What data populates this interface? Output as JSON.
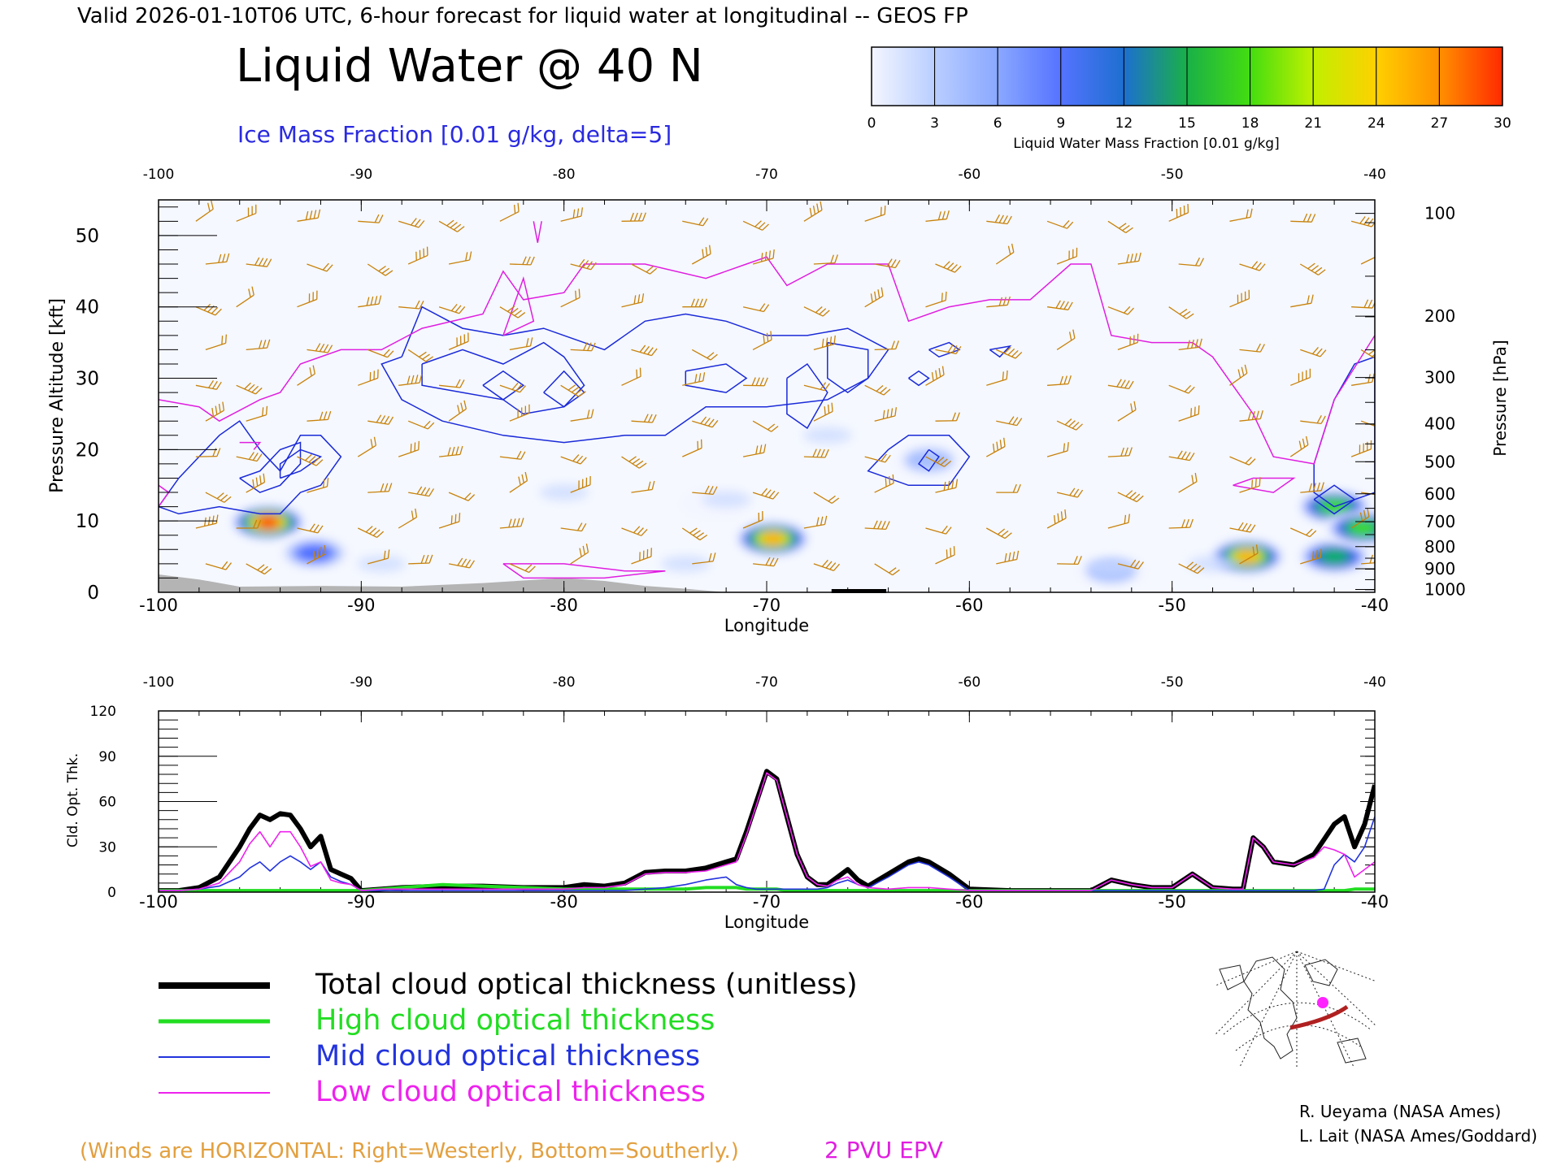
{
  "header": {
    "valid_line": "Valid 2026-01-10T06 UTC, 6-hour forecast for liquid water at longitudinal -- GEOS FP",
    "title": "Liquid Water @ 40 N",
    "subtitle": "Ice Mass Fraction [0.01 g/kg, delta=5]"
  },
  "colorbar": {
    "ticks": [
      "0",
      "3",
      "6",
      "9",
      "12",
      "15",
      "18",
      "21",
      "24",
      "27",
      "30"
    ],
    "label": "Liquid Water Mass Fraction [0.01 g/kg]",
    "colors": [
      "#f4f6ff",
      "#c9d8ff",
      "#9cbcff",
      "#6b8cff",
      "#3355ff",
      "#1aa0a0",
      "#22cc22",
      "#7ee010",
      "#e8ff00",
      "#ffc000",
      "#ff7a00",
      "#ff2000"
    ]
  },
  "top_panel": {
    "y_left_label": "Pressure Altitude [kft]",
    "y_right_label": "Pressure [hPa]",
    "x_label": "Longitude",
    "x_ticks": [
      "-100",
      "-90",
      "-80",
      "-70",
      "-60",
      "-50",
      "-40"
    ],
    "y_left_ticks": [
      "0",
      "10",
      "20",
      "30",
      "40",
      "50"
    ],
    "y_right_ticks": [
      "100",
      "200",
      "300",
      "400",
      "500",
      "600",
      "700",
      "800",
      "900",
      "1000"
    ]
  },
  "bottom_panel": {
    "y_label": "Cld. Opt. Thk.",
    "x_label": "Longitude",
    "x_ticks": [
      "-100",
      "-90",
      "-80",
      "-70",
      "-60",
      "-50",
      "-40"
    ],
    "y_ticks": [
      "0",
      "30",
      "60",
      "90",
      "120"
    ]
  },
  "legend": {
    "total": "Total cloud optical thickness (unitless)",
    "high": "High cloud optical thickness",
    "mid": "Mid cloud optical thickness",
    "low": "Low cloud optical thickness"
  },
  "footer": {
    "winds_note": "(Winds are HORIZONTAL: Right=Westerly, Bottom=Southerly.)",
    "pv_label": "2 PVU EPV",
    "credit1": "R. Ueyama (NASA Ames)",
    "credit2": "L. Lait (NASA Ames/Goddard)"
  },
  "colors": {
    "total": "#000000",
    "high": "#22dd22",
    "mid": "#2233dd",
    "low": "#ee22ee",
    "ice_contour": "#1a2ad8",
    "pv": "#e01ee0",
    "wind_barb": "#c8820a",
    "terrain": "#b4b4b4"
  },
  "chart_data": [
    {
      "type": "heatmap",
      "name": "liquid_water_cross_section",
      "x_range": [
        -100,
        -40
      ],
      "y_range_kft": [
        0,
        55
      ],
      "liquid_water_blobs": [
        {
          "lon": -94.6,
          "alt_kft": 9.8,
          "peak": 27
        },
        {
          "lon": -92.3,
          "alt_kft": 5.5,
          "peak": 10
        },
        {
          "lon": -69.7,
          "alt_kft": 7.5,
          "peak": 26
        },
        {
          "lon": -62.0,
          "alt_kft": 18.5,
          "peak": 6
        },
        {
          "lon": -46.3,
          "alt_kft": 5.0,
          "peak": 24
        },
        {
          "lon": -42.0,
          "alt_kft": 12.0,
          "peak": 20
        },
        {
          "lon": -42.0,
          "alt_kft": 5.0,
          "peak": 17
        },
        {
          "lon": -40.6,
          "alt_kft": 9.0,
          "peak": 18
        },
        {
          "lon": -53.0,
          "alt_kft": 3.0,
          "peak": 6
        },
        {
          "lon": -72.5,
          "alt_kft": 12.5,
          "peak": 5
        }
      ],
      "pv_2pvu_line": [
        [
          -100,
          27
        ],
        [
          -98,
          26
        ],
        [
          -97,
          24
        ],
        [
          -95,
          27
        ],
        [
          -94,
          28
        ],
        [
          -93,
          32
        ],
        [
          -91,
          34
        ],
        [
          -89,
          34
        ],
        [
          -87,
          37
        ],
        [
          -84,
          39
        ],
        [
          -83,
          45
        ],
        [
          -82,
          41
        ],
        [
          -80,
          42
        ],
        [
          -79,
          46
        ],
        [
          -76,
          46
        ],
        [
          -73,
          44
        ],
        [
          -71,
          46
        ],
        [
          -70,
          47
        ],
        [
          -69,
          43
        ],
        [
          -67,
          46
        ],
        [
          -64,
          46
        ],
        [
          -63,
          38
        ],
        [
          -61,
          40
        ],
        [
          -59,
          41
        ],
        [
          -57,
          41
        ],
        [
          -55,
          46
        ],
        [
          -54,
          46
        ],
        [
          -53,
          36
        ],
        [
          -51,
          35
        ],
        [
          -49,
          35
        ],
        [
          -48,
          33
        ],
        [
          -46,
          25
        ],
        [
          -45,
          19
        ],
        [
          -43,
          18
        ],
        [
          -42,
          27
        ],
        [
          -40,
          36
        ]
      ],
      "wind_barb_columns_lon": [
        -98,
        -96,
        -93,
        -90,
        -88,
        -86,
        -83,
        -80,
        -77,
        -74,
        -71,
        -68,
        -65,
        -62,
        -59,
        -56,
        -53,
        -50,
        -47,
        -44,
        -41
      ]
    },
    {
      "type": "line",
      "name": "cloud_optical_thickness",
      "x": [
        -100,
        -99,
        -98,
        -97,
        -96,
        -95.5,
        -95,
        -94.5,
        -94,
        -93.5,
        -93,
        -92.5,
        -92,
        -91.5,
        -91,
        -90.5,
        -90,
        -89,
        -88,
        -86,
        -84,
        -82,
        -80,
        -79,
        -78,
        -77,
        -76,
        -75,
        -74,
        -73,
        -72,
        -71.5,
        -71,
        -70.5,
        -70,
        -69.5,
        -69,
        -68.5,
        -68,
        -67.5,
        -67,
        -66.5,
        -66,
        -65.5,
        -65,
        -64,
        -63,
        -62.5,
        -62,
        -61,
        -60,
        -58,
        -56,
        -54,
        -53,
        -52,
        -51,
        -50,
        -49,
        -48,
        -47,
        -46.5,
        -46,
        -45.5,
        -45,
        -44,
        -43,
        -42.5,
        -42,
        -41.5,
        -41,
        -40.5,
        -40
      ],
      "ylim": [
        0,
        120
      ],
      "series": [
        {
          "name": "Total cloud optical thickness (unitless)",
          "values": [
            1,
            1,
            3,
            10,
            30,
            42,
            51,
            48,
            52,
            51,
            42,
            30,
            37,
            15,
            12,
            9,
            1,
            2,
            3,
            4,
            4,
            3,
            3,
            5,
            4,
            6,
            13,
            14,
            14,
            16,
            20,
            22,
            40,
            60,
            80,
            75,
            50,
            25,
            10,
            5,
            5,
            10,
            15,
            8,
            4,
            12,
            20,
            22,
            20,
            12,
            2,
            1,
            1,
            1,
            8,
            5,
            3,
            3,
            12,
            3,
            2,
            2,
            36,
            30,
            20,
            18,
            25,
            35,
            45,
            50,
            30,
            45,
            71
          ]
        },
        {
          "name": "High cloud optical thickness",
          "values": [
            1,
            1,
            1,
            1,
            1,
            1,
            1,
            1,
            1,
            1,
            1,
            1,
            1,
            1,
            1,
            1,
            1,
            2,
            3,
            5,
            4,
            3,
            2,
            2,
            2,
            2,
            2,
            2,
            2,
            3,
            3,
            3,
            2,
            2,
            2,
            2,
            1,
            1,
            1,
            1,
            1,
            1,
            1,
            1,
            1,
            1,
            1,
            1,
            1,
            1,
            1,
            1,
            1,
            1,
            1,
            1,
            1,
            1,
            1,
            1,
            1,
            1,
            1,
            1,
            1,
            1,
            1,
            1,
            1,
            1,
            2,
            2,
            2
          ]
        },
        {
          "name": "Mid cloud optical thickness",
          "values": [
            1,
            1,
            2,
            4,
            10,
            16,
            20,
            14,
            20,
            24,
            20,
            15,
            20,
            10,
            7,
            5,
            1,
            1,
            1,
            1,
            1,
            1,
            1,
            1,
            1,
            1,
            2,
            3,
            5,
            8,
            10,
            5,
            3,
            2,
            2,
            2,
            2,
            2,
            2,
            2,
            3,
            6,
            8,
            5,
            3,
            10,
            18,
            20,
            18,
            10,
            1,
            1,
            1,
            1,
            1,
            1,
            1,
            1,
            1,
            1,
            1,
            1,
            1,
            1,
            1,
            1,
            1,
            2,
            18,
            25,
            20,
            30,
            50
          ]
        },
        {
          "name": "Low cloud optical thickness",
          "values": [
            1,
            1,
            2,
            6,
            20,
            32,
            40,
            30,
            40,
            40,
            30,
            17,
            20,
            8,
            6,
            5,
            1,
            2,
            2,
            2,
            2,
            2,
            2,
            3,
            3,
            5,
            12,
            13,
            13,
            14,
            18,
            20,
            38,
            58,
            79,
            74,
            50,
            25,
            10,
            5,
            4,
            8,
            10,
            5,
            3,
            2,
            3,
            3,
            3,
            2,
            1,
            1,
            1,
            1,
            8,
            5,
            3,
            3,
            12,
            3,
            2,
            2,
            36,
            30,
            20,
            18,
            23,
            30,
            28,
            25,
            10,
            15,
            20
          ]
        }
      ]
    }
  ]
}
